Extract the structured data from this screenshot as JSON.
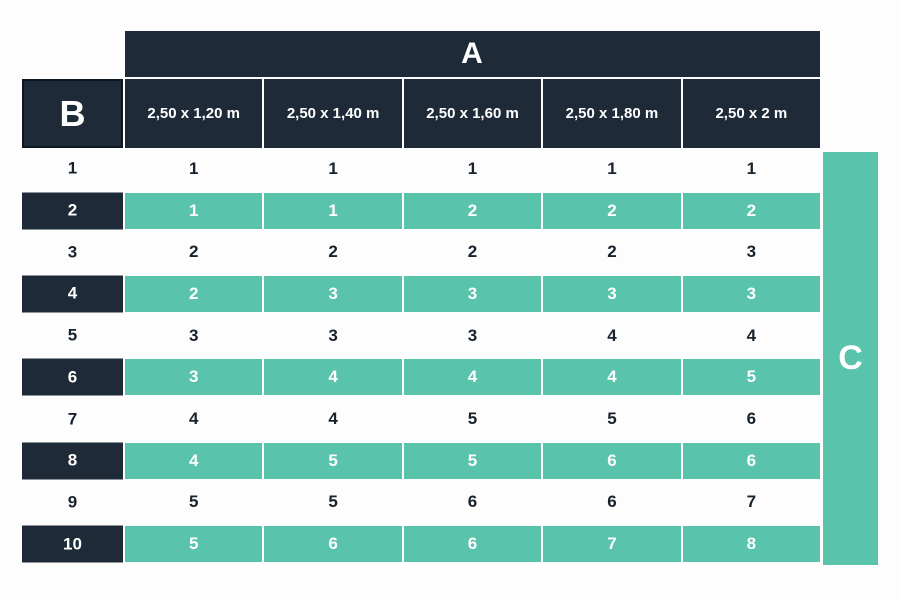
{
  "colors": {
    "navy": "#1e2a38",
    "teal": "#59c3ac",
    "dark_text": "#17222e",
    "background": "#fdfdfd"
  },
  "chart_data": {
    "type": "table",
    "col_group_label": "A",
    "row_group_label": "B",
    "side_label": "C",
    "columns": [
      "2,50 x 1,20 m",
      "2,50 x 1,40 m",
      "2,50 x 1,60 m",
      "2,50 x 1,80 m",
      "2,50 x 2 m"
    ],
    "rows": [
      {
        "label": "1",
        "values": [
          1,
          1,
          1,
          1,
          1
        ],
        "highlighted": false
      },
      {
        "label": "2",
        "values": [
          1,
          1,
          2,
          2,
          2
        ],
        "highlighted": true
      },
      {
        "label": "3",
        "values": [
          2,
          2,
          2,
          2,
          3
        ],
        "highlighted": false
      },
      {
        "label": "4",
        "values": [
          2,
          3,
          3,
          3,
          3
        ],
        "highlighted": true
      },
      {
        "label": "5",
        "values": [
          3,
          3,
          3,
          4,
          4
        ],
        "highlighted": false
      },
      {
        "label": "6",
        "values": [
          3,
          4,
          4,
          4,
          5
        ],
        "highlighted": true
      },
      {
        "label": "7",
        "values": [
          4,
          4,
          5,
          5,
          6
        ],
        "highlighted": false
      },
      {
        "label": "8",
        "values": [
          4,
          5,
          5,
          6,
          6
        ],
        "highlighted": true
      },
      {
        "label": "9",
        "values": [
          5,
          5,
          6,
          6,
          7
        ],
        "highlighted": false
      },
      {
        "label": "10",
        "values": [
          5,
          6,
          6,
          7,
          8
        ],
        "highlighted": true
      }
    ],
    "legend": "highlighted rows use teal cells with white text; plain rows use dark text on white"
  }
}
